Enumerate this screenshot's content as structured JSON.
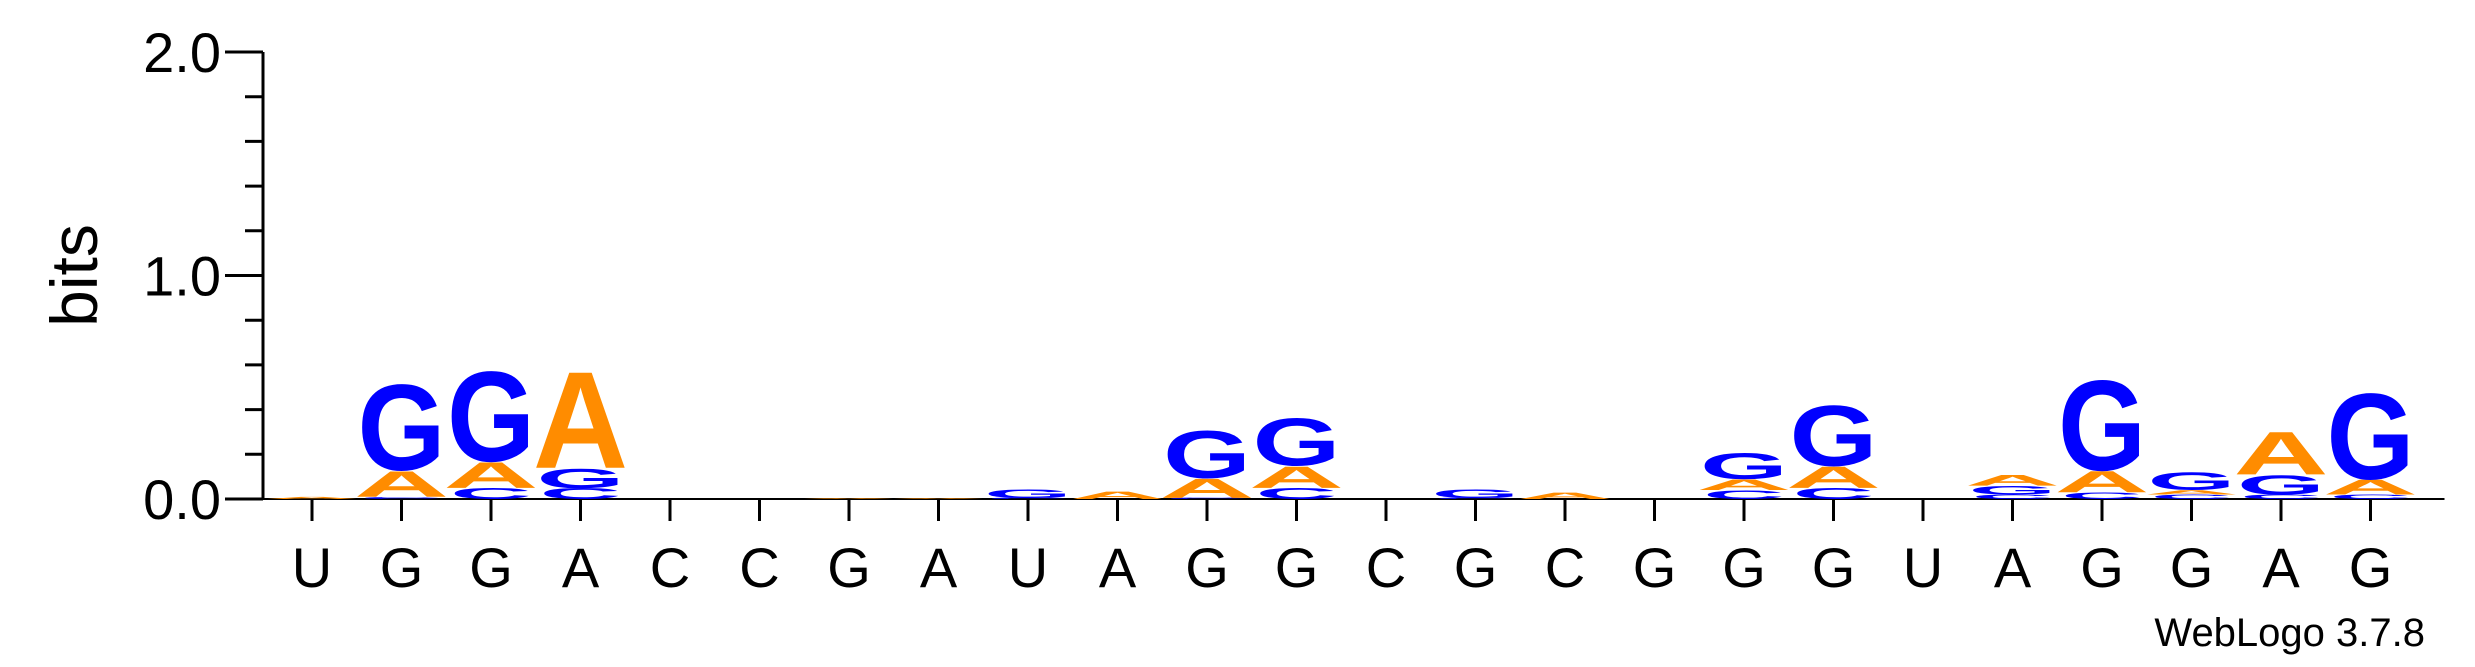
{
  "chart_data": {
    "type": "sequence-logo",
    "ylabel": "bits",
    "yticks": [
      "0.0",
      "1.0",
      "2.0"
    ],
    "ylim": [
      0,
      2
    ],
    "credit": "WebLogo 3.7.8",
    "colors": {
      "A": "#ff8c00",
      "C": "#0000ff",
      "G": "#0000ff",
      "U": "#ff8c00"
    },
    "positions": [
      {
        "label": "U",
        "stack": [
          {
            "letter": "A",
            "bits": 0.01
          }
        ]
      },
      {
        "label": "G",
        "stack": [
          {
            "letter": "C",
            "bits": 0.01
          },
          {
            "letter": "A",
            "bits": 0.12
          },
          {
            "letter": "G",
            "bits": 0.4
          }
        ]
      },
      {
        "label": "G",
        "stack": [
          {
            "letter": "C",
            "bits": 0.05
          },
          {
            "letter": "A",
            "bits": 0.12
          },
          {
            "letter": "G",
            "bits": 0.42
          }
        ]
      },
      {
        "label": "A",
        "stack": [
          {
            "letter": "C",
            "bits": 0.05
          },
          {
            "letter": "G",
            "bits": 0.09
          },
          {
            "letter": "A",
            "bits": 0.45
          }
        ]
      },
      {
        "label": "C",
        "stack": []
      },
      {
        "label": "C",
        "stack": []
      },
      {
        "label": "G",
        "stack": [
          {
            "letter": "A",
            "bits": 0.005
          }
        ]
      },
      {
        "label": "A",
        "stack": [
          {
            "letter": "A",
            "bits": 0.005
          }
        ]
      },
      {
        "label": "U",
        "stack": [
          {
            "letter": "C",
            "bits": 0.005
          },
          {
            "letter": "G",
            "bits": 0.04
          }
        ]
      },
      {
        "label": "A",
        "stack": [
          {
            "letter": "A",
            "bits": 0.035
          }
        ]
      },
      {
        "label": "G",
        "stack": [
          {
            "letter": "C",
            "bits": 0.005
          },
          {
            "letter": "A",
            "bits": 0.09
          },
          {
            "letter": "G",
            "bits": 0.22
          }
        ]
      },
      {
        "label": "G",
        "stack": [
          {
            "letter": "C",
            "bits": 0.05
          },
          {
            "letter": "A",
            "bits": 0.1
          },
          {
            "letter": "G",
            "bits": 0.22
          }
        ]
      },
      {
        "label": "C",
        "stack": []
      },
      {
        "label": "G",
        "stack": [
          {
            "letter": "C",
            "bits": 0.005
          },
          {
            "letter": "G",
            "bits": 0.04
          }
        ]
      },
      {
        "label": "C",
        "stack": [
          {
            "letter": "A",
            "bits": 0.03
          }
        ]
      },
      {
        "label": "G",
        "stack": []
      },
      {
        "label": "G",
        "stack": [
          {
            "letter": "C",
            "bits": 0.04
          },
          {
            "letter": "A",
            "bits": 0.05
          },
          {
            "letter": "G",
            "bits": 0.12
          }
        ]
      },
      {
        "label": "G",
        "stack": [
          {
            "letter": "C",
            "bits": 0.05
          },
          {
            "letter": "A",
            "bits": 0.1
          },
          {
            "letter": "G",
            "bits": 0.28
          }
        ]
      },
      {
        "label": "U",
        "stack": []
      },
      {
        "label": "A",
        "stack": [
          {
            "letter": "C",
            "bits": 0.02
          },
          {
            "letter": "G",
            "bits": 0.04
          },
          {
            "letter": "A",
            "bits": 0.05
          }
        ]
      },
      {
        "label": "G",
        "stack": [
          {
            "letter": "C",
            "bits": 0.03
          },
          {
            "letter": "A",
            "bits": 0.1
          },
          {
            "letter": "G",
            "bits": 0.42
          }
        ]
      },
      {
        "label": "G",
        "stack": [
          {
            "letter": "C",
            "bits": 0.02
          },
          {
            "letter": "A",
            "bits": 0.02
          },
          {
            "letter": "G",
            "bits": 0.08
          }
        ]
      },
      {
        "label": "A",
        "stack": [
          {
            "letter": "C",
            "bits": 0.02
          },
          {
            "letter": "G",
            "bits": 0.09
          },
          {
            "letter": "A",
            "bits": 0.2
          }
        ]
      },
      {
        "label": "G",
        "stack": [
          {
            "letter": "C",
            "bits": 0.02
          },
          {
            "letter": "A",
            "bits": 0.07
          },
          {
            "letter": "G",
            "bits": 0.4
          }
        ]
      }
    ]
  }
}
